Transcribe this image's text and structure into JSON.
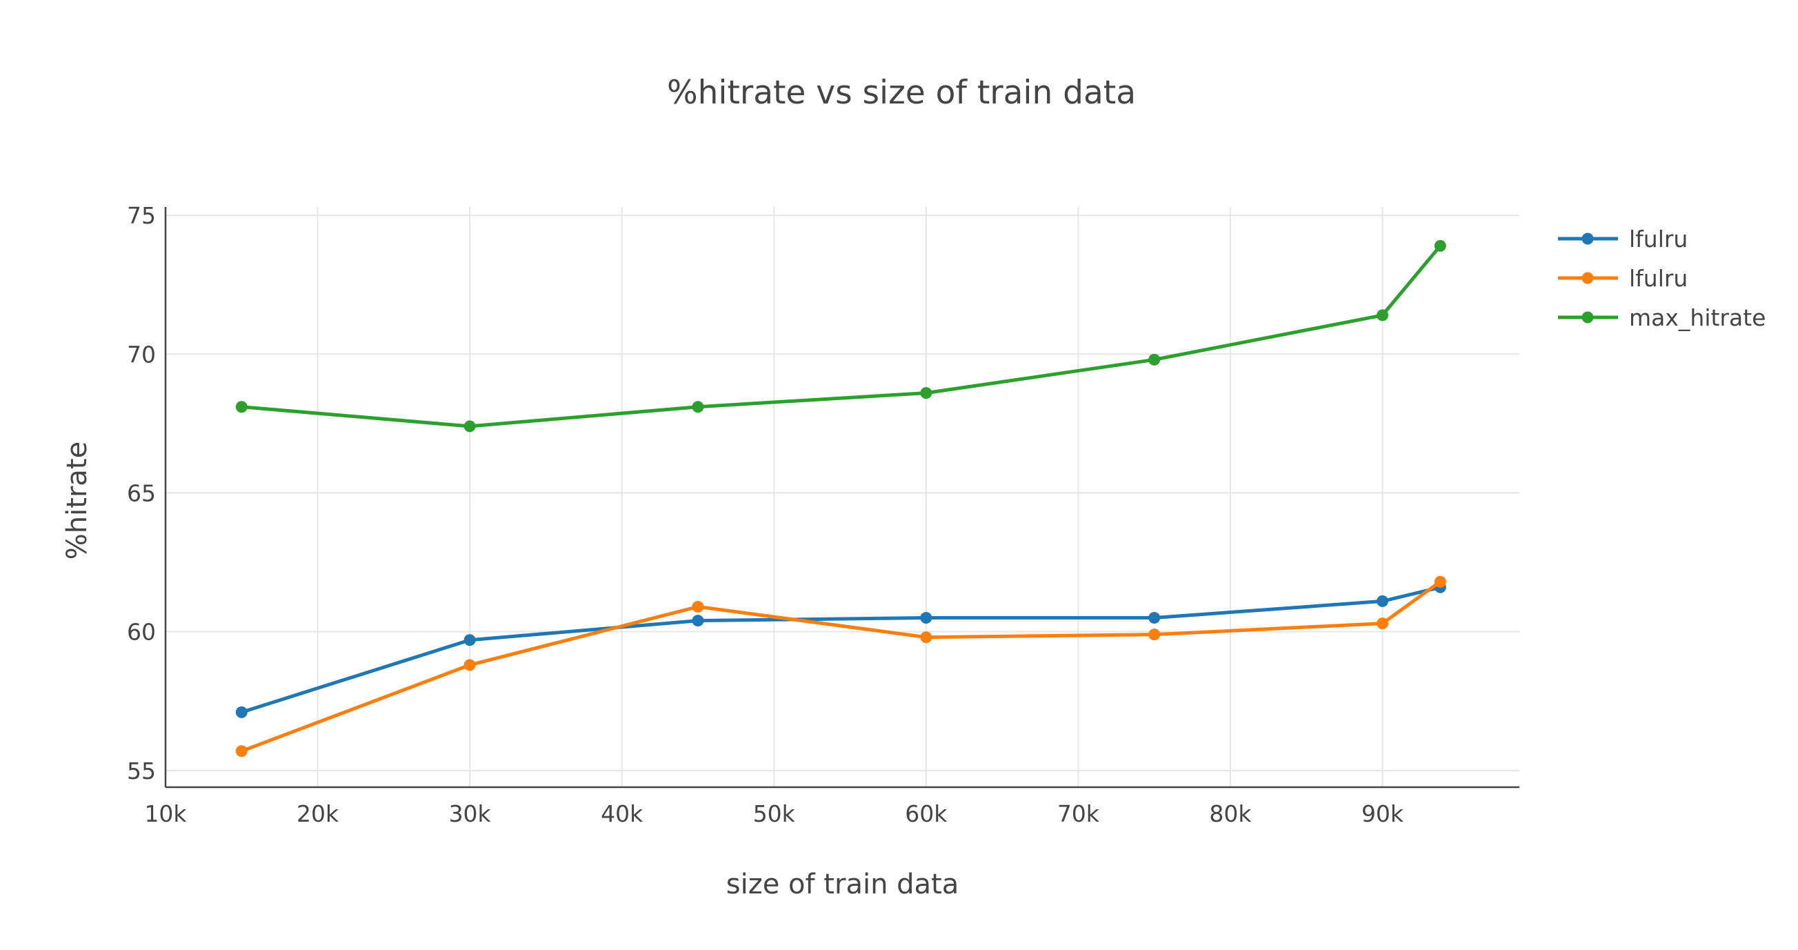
{
  "chart_data": {
    "type": "line",
    "title": "%hitrate vs size of train data",
    "xlabel": "size of train data",
    "ylabel": "%hitrate",
    "xlim": [
      10000,
      99000
    ],
    "ylim": [
      54.4,
      75.3
    ],
    "xticks": [
      10000,
      20000,
      30000,
      40000,
      50000,
      60000,
      70000,
      80000,
      90000
    ],
    "xtick_labels": [
      "10k",
      "20k",
      "30k",
      "40k",
      "50k",
      "60k",
      "70k",
      "80k",
      "90k"
    ],
    "yticks": [
      55,
      60,
      65,
      70,
      75
    ],
    "ytick_labels": [
      "55",
      "60",
      "65",
      "70",
      "75"
    ],
    "grid": true,
    "legend_position": "top-right, outside plot",
    "x": [
      15000,
      30000,
      45000,
      60000,
      75000,
      90000,
      93800
    ],
    "series": [
      {
        "name": "lfulru",
        "color": "#1f77b4",
        "values": [
          57.1,
          59.7,
          60.4,
          60.5,
          60.5,
          61.1,
          61.6
        ]
      },
      {
        "name": "lfulru",
        "color": "#ff7f0e",
        "values": [
          55.7,
          58.8,
          60.9,
          59.8,
          59.9,
          60.3,
          61.8
        ]
      },
      {
        "name": "max_hitrate",
        "color": "#2ca02c",
        "values": [
          68.1,
          67.4,
          68.1,
          68.6,
          69.8,
          71.4,
          73.9
        ]
      }
    ]
  }
}
